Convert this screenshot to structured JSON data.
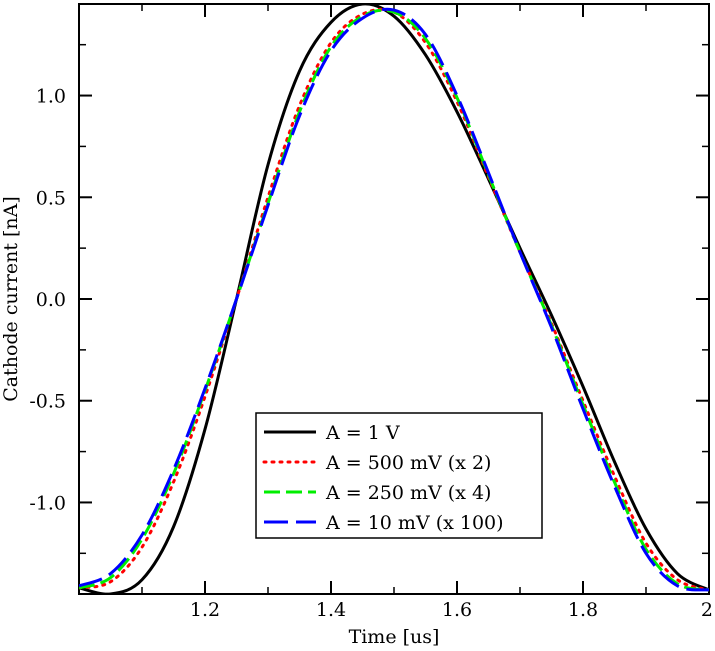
{
  "chart_data": {
    "type": "line",
    "title": "",
    "xlabel": "Time [us]",
    "ylabel": "Cathode current [nA]",
    "xlim": [
      1.0,
      2.0
    ],
    "ylim": [
      -1.45,
      1.45
    ],
    "grid": false,
    "legend_position": "bottom-center",
    "x_ticks": [
      {
        "value": 1.2,
        "label": "1.2"
      },
      {
        "value": 1.4,
        "label": "1.4"
      },
      {
        "value": 1.6,
        "label": "1.6"
      },
      {
        "value": 1.8,
        "label": "1.8"
      },
      {
        "value": 2.0,
        "label": "2"
      }
    ],
    "y_ticks": [
      {
        "value": -1.0,
        "label": "-1.0"
      },
      {
        "value": -0.5,
        "label": "-0.5"
      },
      {
        "value": 0.0,
        "label": "0.0"
      },
      {
        "value": 0.5,
        "label": "0.5"
      },
      {
        "value": 1.0,
        "label": "1.0"
      }
    ],
    "series": [
      {
        "name": "A = 1 V",
        "color": "#000000",
        "style": "solid",
        "x": [
          1.0,
          1.05,
          1.1,
          1.15,
          1.2,
          1.25,
          1.3,
          1.35,
          1.4,
          1.45,
          1.5,
          1.55,
          1.6,
          1.65,
          1.7,
          1.75,
          1.8,
          1.85,
          1.9,
          1.95,
          2.0
        ],
        "y": [
          -1.42,
          -1.45,
          -1.38,
          -1.12,
          -0.64,
          0.0,
          0.66,
          1.12,
          1.36,
          1.45,
          1.39,
          1.2,
          0.92,
          0.59,
          0.25,
          -0.08,
          -0.43,
          -0.8,
          -1.13,
          -1.35,
          -1.43
        ]
      },
      {
        "name": "A = 500 mV (x 2)",
        "color": "#ff0000",
        "style": "dotted",
        "x": [
          1.0,
          1.05,
          1.1,
          1.15,
          1.2,
          1.25,
          1.3,
          1.35,
          1.4,
          1.45,
          1.5,
          1.55,
          1.6,
          1.65,
          1.7,
          1.75,
          1.8,
          1.85,
          1.9,
          1.95,
          2.0
        ],
        "y": [
          -1.42,
          -1.39,
          -1.22,
          -0.9,
          -0.48,
          0.0,
          0.5,
          0.95,
          1.26,
          1.4,
          1.41,
          1.26,
          0.97,
          0.6,
          0.23,
          -0.12,
          -0.5,
          -0.87,
          -1.2,
          -1.38,
          -1.43
        ]
      },
      {
        "name": "A = 250 mV (x 4)",
        "color": "#00ee00",
        "style": "dashed",
        "x": [
          1.0,
          1.05,
          1.1,
          1.15,
          1.2,
          1.25,
          1.3,
          1.35,
          1.4,
          1.45,
          1.5,
          1.55,
          1.6,
          1.65,
          1.7,
          1.75,
          1.8,
          1.85,
          1.9,
          1.95,
          2.0
        ],
        "y": [
          -1.42,
          -1.37,
          -1.18,
          -0.86,
          -0.45,
          0.0,
          0.47,
          0.92,
          1.24,
          1.39,
          1.41,
          1.28,
          0.99,
          0.61,
          0.23,
          -0.13,
          -0.52,
          -0.9,
          -1.23,
          -1.4,
          -1.43
        ]
      },
      {
        "name": "A = 10 mV (x 100)",
        "color": "#0000ff",
        "style": "longdash",
        "x": [
          1.0,
          1.05,
          1.1,
          1.15,
          1.2,
          1.25,
          1.3,
          1.35,
          1.4,
          1.45,
          1.5,
          1.55,
          1.6,
          1.65,
          1.7,
          1.75,
          1.8,
          1.85,
          1.9,
          1.95,
          2.0
        ],
        "y": [
          -1.41,
          -1.35,
          -1.16,
          -0.84,
          -0.44,
          0.0,
          0.46,
          0.9,
          1.22,
          1.38,
          1.42,
          1.3,
          1.0,
          0.62,
          0.23,
          -0.14,
          -0.54,
          -0.92,
          -1.25,
          -1.41,
          -1.43
        ]
      }
    ]
  }
}
